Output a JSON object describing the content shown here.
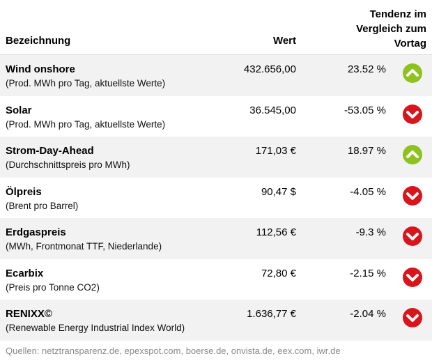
{
  "header": {
    "name_label": "Bezeichnung",
    "value_label": "Wert",
    "trend_line1": "Tendenz im",
    "trend_line2": "Vergleich zum",
    "trend_line3": "Vortag"
  },
  "rows": [
    {
      "name": "Wind onshore",
      "desc": "(Prod. MWh pro Tag, aktuellste Werte)",
      "value": "432.656,00",
      "pct": "23.52 %",
      "trend": "up"
    },
    {
      "name": "Solar",
      "desc": "(Prod. MWh pro Tag, aktuellste Werte)",
      "value": "36.545,00",
      "pct": "-53.05 %",
      "trend": "down"
    },
    {
      "name": "Strom-Day-Ahead",
      "desc": "(Durchschnittspreis pro MWh)",
      "value": "171,03 €",
      "pct": "18.97 %",
      "trend": "up"
    },
    {
      "name": "Ölpreis",
      "desc": "(Brent pro Barrel)",
      "value": "90,47 $",
      "pct": "-4.05 %",
      "trend": "down"
    },
    {
      "name": "Erdgaspreis",
      "desc": "(MWh, Frontmonat TTF, Niederlande)",
      "value": "112,56 €",
      "pct": "-9.3 %",
      "trend": "down"
    },
    {
      "name": "Ecarbix",
      "desc": "(Preis pro Tonne CO2)",
      "value": "72,80 €",
      "pct": "-2.15 %",
      "trend": "down"
    },
    {
      "name": "RENIXX©",
      "desc": "(Renewable Energy Industrial Index World)",
      "value": "1.636,77 €",
      "pct": "-2.04 %",
      "trend": "down"
    }
  ],
  "footer": {
    "sources": "Quellen: netztransparenz.de, epexspot.com, boerse.de, onvista.de, eex.com, iwr.de"
  },
  "colors": {
    "up": "#8dc21f",
    "down": "#d9141b",
    "row_alt": "#f2f2f2",
    "footer_text": "#8a8a8a"
  },
  "icons": {
    "up": "chevron-up-circle-icon",
    "down": "chevron-down-circle-icon"
  }
}
